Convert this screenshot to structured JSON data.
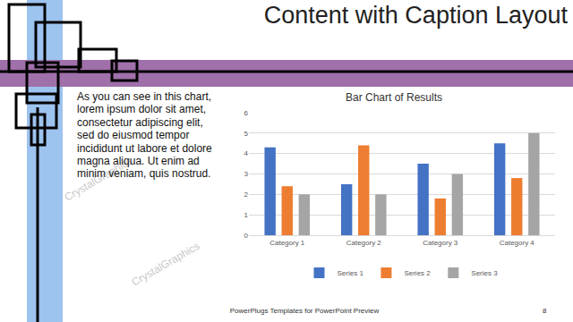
{
  "slide": {
    "title": "Content with Caption Layout",
    "body": [
      "As you can see in this chart,",
      "lorem ipsum dolor sit amet,",
      "consectetur adipiscing elit,",
      "sed do eiusmod tempor",
      "incididunt ut labore et dolore",
      "magna aliqua. Ut enim ad",
      "minim veniam, quis nostrud."
    ],
    "footer": "PowerPlugs Templates for PowerPoint Preview",
    "page": "8",
    "watermark": "CrystalGraphics"
  },
  "chart_data": {
    "type": "bar",
    "title": "Bar Chart of Results",
    "categories": [
      "Category 1",
      "Category 2",
      "Category 3",
      "Category 4"
    ],
    "series": [
      {
        "name": "Series 1",
        "color": "#4472c4",
        "values": [
          4.3,
          2.5,
          3.5,
          4.5
        ]
      },
      {
        "name": "Series 2",
        "color": "#ed7d31",
        "values": [
          2.4,
          4.4,
          1.8,
          2.8
        ]
      },
      {
        "name": "Series 3",
        "color": "#a5a5a5",
        "values": [
          2,
          2,
          3,
          5
        ]
      }
    ],
    "ylim": [
      0,
      6
    ],
    "yticks": [
      0,
      1,
      2,
      3,
      4,
      5,
      6
    ],
    "grid": true,
    "legend": "bottom"
  }
}
